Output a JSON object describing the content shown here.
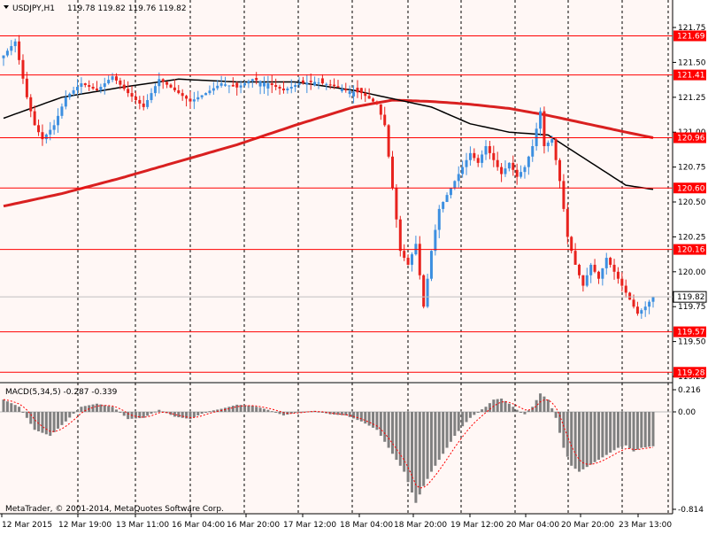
{
  "header": {
    "symbol": "USDJPY,H1",
    "ohlc": "119.78 119.82 119.76 119.82",
    "indicator_label": "MACD(5,34,5) -0.287 -0.339",
    "copyright": "MetaTrader, © 2001-2014, MetaQuotes Software Corp."
  },
  "colors": {
    "background": "#fff7f5",
    "bull": "#3d8fe0",
    "bear": "#e8231e",
    "ma_fast": "#000000",
    "ma_slow": "#d92020",
    "level_line": "#ff0000",
    "level_label_bg": "#ff0000",
    "current_label_bg": "#ffffff",
    "macd_hist": "#808080",
    "macd_signal": "#ff0000"
  },
  "chart_data": [
    {
      "type": "candlestick",
      "title": "USDJPY,H1",
      "ylim": [
        119.25,
        121.82
      ],
      "y_ticks": [
        "121.75",
        "121.50",
        "121.25",
        "121.00",
        "120.75",
        "120.50",
        "120.25",
        "120.00",
        "119.75",
        "119.50",
        "119.25"
      ],
      "x_labels": [
        "12 Mar 2015",
        "12 Mar 19:00",
        "13 Mar 11:00",
        "16 Mar 04:00",
        "16 Mar 20:00",
        "17 Mar 12:00",
        "18 Mar 04:00",
        "18 Mar 20:00",
        "19 Mar 12:00",
        "20 Mar 04:00",
        "20 Mar 20:00",
        "23 Mar 13:00"
      ],
      "price_levels": [
        "121.69",
        "121.41",
        "120.96",
        "120.60",
        "120.16",
        "119.57",
        "119.28"
      ],
      "current_price": "119.82",
      "close_path": [
        [
          0,
          121.55
        ],
        [
          3,
          121.65
        ],
        [
          6,
          121.25
        ],
        [
          8,
          121.05
        ],
        [
          10,
          120.95
        ],
        [
          13,
          121.05
        ],
        [
          16,
          121.25
        ],
        [
          20,
          121.35
        ],
        [
          24,
          121.3
        ],
        [
          28,
          121.4
        ],
        [
          32,
          121.28
        ],
        [
          36,
          121.18
        ],
        [
          40,
          121.38
        ],
        [
          44,
          121.3
        ],
        [
          48,
          121.22
        ],
        [
          52,
          121.28
        ],
        [
          56,
          121.35
        ],
        [
          60,
          121.32
        ],
        [
          64,
          121.38
        ],
        [
          68,
          121.35
        ],
        [
          72,
          121.3
        ],
        [
          76,
          121.35
        ],
        [
          80,
          121.36
        ],
        [
          84,
          121.34
        ],
        [
          88,
          121.3
        ],
        [
          92,
          121.28
        ],
        [
          96,
          121.2
        ],
        [
          98,
          121.05
        ],
        [
          100,
          120.6
        ],
        [
          102,
          120.15
        ],
        [
          104,
          120.05
        ],
        [
          106,
          120.2
        ],
        [
          108,
          119.75
        ],
        [
          110,
          120.15
        ],
        [
          112,
          120.45
        ],
        [
          114,
          120.55
        ],
        [
          116,
          120.65
        ],
        [
          118,
          120.75
        ],
        [
          120,
          120.85
        ],
        [
          122,
          120.78
        ],
        [
          124,
          120.9
        ],
        [
          126,
          120.8
        ],
        [
          128,
          120.7
        ],
        [
          130,
          120.78
        ],
        [
          132,
          120.68
        ],
        [
          134,
          120.75
        ],
        [
          136,
          120.9
        ],
        [
          138,
          121.15
        ],
        [
          139,
          120.9
        ],
        [
          141,
          120.95
        ],
        [
          143,
          120.65
        ],
        [
          145,
          120.25
        ],
        [
          147,
          120.05
        ],
        [
          149,
          119.9
        ],
        [
          151,
          120.05
        ],
        [
          153,
          119.95
        ],
        [
          155,
          120.1
        ],
        [
          157,
          120.0
        ],
        [
          159,
          119.9
        ],
        [
          161,
          119.8
        ],
        [
          163,
          119.7
        ],
        [
          165,
          119.75
        ],
        [
          167,
          119.82
        ]
      ],
      "ma_fast": [
        [
          0,
          121.1
        ],
        [
          15,
          121.25
        ],
        [
          30,
          121.32
        ],
        [
          45,
          121.38
        ],
        [
          60,
          121.36
        ],
        [
          75,
          121.36
        ],
        [
          90,
          121.3
        ],
        [
          100,
          121.24
        ],
        [
          110,
          121.18
        ],
        [
          120,
          121.06
        ],
        [
          130,
          121.0
        ],
        [
          140,
          120.98
        ],
        [
          150,
          120.8
        ],
        [
          160,
          120.62
        ],
        [
          167,
          120.59
        ]
      ],
      "ma_slow": [
        [
          0,
          120.47
        ],
        [
          15,
          120.56
        ],
        [
          30,
          120.67
        ],
        [
          45,
          120.79
        ],
        [
          60,
          120.91
        ],
        [
          75,
          121.05
        ],
        [
          90,
          121.18
        ],
        [
          100,
          121.23
        ],
        [
          110,
          121.22
        ],
        [
          120,
          121.2
        ],
        [
          130,
          121.17
        ],
        [
          140,
          121.12
        ],
        [
          150,
          121.06
        ],
        [
          160,
          121.0
        ],
        [
          167,
          120.96
        ]
      ]
    },
    {
      "type": "bar",
      "title": "MACD(5,34,5)",
      "ylim": [
        -0.814,
        0.216
      ],
      "y_ticks": [
        "0.216",
        "0.00",
        "-0.814"
      ],
      "histogram_path": [
        [
          0,
          0.12
        ],
        [
          4,
          0.05
        ],
        [
          8,
          -0.15
        ],
        [
          12,
          -0.2
        ],
        [
          16,
          -0.08
        ],
        [
          20,
          0.05
        ],
        [
          24,
          0.08
        ],
        [
          28,
          0.05
        ],
        [
          32,
          -0.06
        ],
        [
          36,
          -0.05
        ],
        [
          40,
          0.02
        ],
        [
          44,
          -0.04
        ],
        [
          48,
          -0.06
        ],
        [
          52,
          0.0
        ],
        [
          56,
          0.03
        ],
        [
          60,
          0.07
        ],
        [
          64,
          0.06
        ],
        [
          68,
          0.02
        ],
        [
          72,
          -0.03
        ],
        [
          76,
          0.0
        ],
        [
          80,
          0.01
        ],
        [
          84,
          -0.02
        ],
        [
          88,
          -0.03
        ],
        [
          92,
          -0.08
        ],
        [
          96,
          -0.15
        ],
        [
          100,
          -0.35
        ],
        [
          103,
          -0.5
        ],
        [
          106,
          -0.76
        ],
        [
          108,
          -0.62
        ],
        [
          110,
          -0.5
        ],
        [
          112,
          -0.4
        ],
        [
          114,
          -0.3
        ],
        [
          116,
          -0.2
        ],
        [
          118,
          -0.12
        ],
        [
          120,
          -0.05
        ],
        [
          122,
          0.0
        ],
        [
          124,
          0.05
        ],
        [
          126,
          0.12
        ],
        [
          128,
          0.13
        ],
        [
          130,
          0.08
        ],
        [
          132,
          0.02
        ],
        [
          134,
          -0.02
        ],
        [
          136,
          0.05
        ],
        [
          138,
          0.18
        ],
        [
          140,
          0.12
        ],
        [
          142,
          -0.05
        ],
        [
          144,
          -0.3
        ],
        [
          146,
          -0.45
        ],
        [
          148,
          -0.5
        ],
        [
          150,
          -0.46
        ],
        [
          152,
          -0.42
        ],
        [
          154,
          -0.38
        ],
        [
          156,
          -0.34
        ],
        [
          158,
          -0.3
        ],
        [
          160,
          -0.28
        ],
        [
          162,
          -0.33
        ],
        [
          164,
          -0.3
        ],
        [
          167,
          -0.287
        ]
      ]
    }
  ]
}
